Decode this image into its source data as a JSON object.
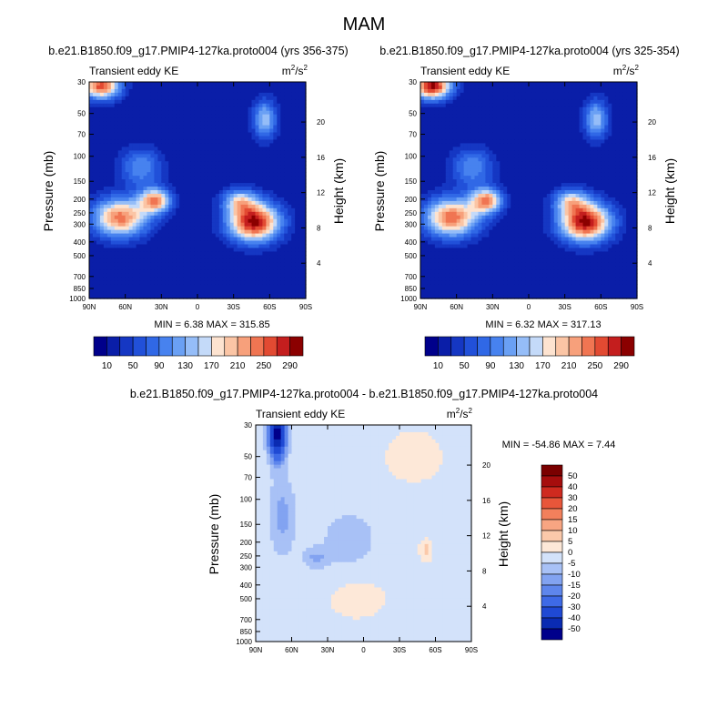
{
  "figure_title": "MAM",
  "chart_data": [
    {
      "type": "heatmap",
      "title": "b.e21.B1850.f09_g17.PMIP4-127ka.proto004 (yrs 356-375)",
      "subtitle_left": "Transient eddy KE",
      "units": "m2/s2",
      "units_base": "m",
      "units_num_sup": "2",
      "units_mid": "/s",
      "units_den_sup": "2",
      "xlabel": "",
      "ylabel": "Pressure (mb)",
      "right_label": "Height (km)",
      "x_ticks": [
        "90N",
        "60N",
        "30N",
        "0",
        "30S",
        "60S",
        "90S"
      ],
      "x_values": [
        90,
        60,
        30,
        0,
        -30,
        -60,
        -90
      ],
      "p_ticks": [
        30,
        50,
        70,
        100,
        150,
        200,
        250,
        300,
        400,
        500,
        700,
        850,
        1000
      ],
      "height_ticks": [
        4,
        8,
        12,
        16,
        20
      ],
      "min_text": "MIN =   6.38  MAX = 315.85",
      "min": 6.38,
      "max": 315.85,
      "colorbar_labels": [
        "10",
        "50",
        "90",
        "130",
        "170",
        "210",
        "250",
        "290"
      ],
      "levels": [
        10,
        30,
        50,
        70,
        90,
        110,
        130,
        150,
        170,
        190,
        210,
        230,
        250,
        270,
        290
      ],
      "features": [
        {
          "lat": 64,
          "p": 270,
          "peak": 240,
          "wlat": 16,
          "wlog": 0.22
        },
        {
          "lat": 35,
          "p": 205,
          "peak": 225,
          "wlat": 9,
          "wlog": 0.14
        },
        {
          "lat": 47,
          "p": 120,
          "peak": 110,
          "wlat": 12,
          "wlog": 0.22
        },
        {
          "lat": 80,
          "p": 32,
          "peak": 260,
          "wlat": 11,
          "wlog": 0.15
        },
        {
          "lat": -47,
          "p": 290,
          "peak": 300,
          "wlat": 15,
          "wlog": 0.22
        },
        {
          "lat": -35,
          "p": 205,
          "peak": 140,
          "wlat": 10,
          "wlog": 0.14
        },
        {
          "lat": -56,
          "p": 55,
          "peak": 145,
          "wlat": 7,
          "wlog": 0.22
        }
      ],
      "background": 12
    },
    {
      "type": "heatmap",
      "title": "b.e21.B1850.f09_g17.PMIP4-127ka.proto004 (yrs 325-354)",
      "subtitle_left": "Transient eddy KE",
      "units": "m2/s2",
      "units_base": "m",
      "units_num_sup": "2",
      "units_mid": "/s",
      "units_den_sup": "2",
      "xlabel": "",
      "ylabel": "Pressure (mb)",
      "right_label": "Height (km)",
      "x_ticks": [
        "90N",
        "60N",
        "30N",
        "0",
        "30S",
        "60S",
        "90S"
      ],
      "x_values": [
        90,
        60,
        30,
        0,
        -30,
        -60,
        -90
      ],
      "p_ticks": [
        30,
        50,
        70,
        100,
        150,
        200,
        250,
        300,
        400,
        500,
        700,
        850,
        1000
      ],
      "height_ticks": [
        4,
        8,
        12,
        16,
        20
      ],
      "min_text": "MIN =   6.32  MAX = 317.13",
      "min": 6.32,
      "max": 317.13,
      "colorbar_labels": [
        "10",
        "50",
        "90",
        "130",
        "170",
        "210",
        "250",
        "290"
      ],
      "levels": [
        10,
        30,
        50,
        70,
        90,
        110,
        130,
        150,
        170,
        190,
        210,
        230,
        250,
        270,
        290
      ],
      "features": [
        {
          "lat": 64,
          "p": 270,
          "peak": 245,
          "wlat": 16,
          "wlog": 0.22
        },
        {
          "lat": 35,
          "p": 205,
          "peak": 225,
          "wlat": 9,
          "wlog": 0.14
        },
        {
          "lat": 47,
          "p": 120,
          "peak": 110,
          "wlat": 12,
          "wlog": 0.22
        },
        {
          "lat": 80,
          "p": 32,
          "peak": 300,
          "wlat": 11,
          "wlog": 0.15
        },
        {
          "lat": -47,
          "p": 290,
          "peak": 300,
          "wlat": 15,
          "wlog": 0.22
        },
        {
          "lat": -35,
          "p": 205,
          "peak": 140,
          "wlat": 10,
          "wlog": 0.14
        },
        {
          "lat": -56,
          "p": 55,
          "peak": 145,
          "wlat": 7,
          "wlog": 0.22
        }
      ],
      "background": 12
    },
    {
      "type": "heatmap",
      "title": "b.e21.B1850.f09_g17.PMIP4-127ka.proto004 - b.e21.B1850.f09_g17.PMIP4-127ka.proto004",
      "subtitle_left": "Transient eddy KE",
      "units": "m2/s2",
      "units_base": "m",
      "units_num_sup": "2",
      "units_mid": "/s",
      "units_den_sup": "2",
      "xlabel": "",
      "ylabel": "Pressure (mb)",
      "right_label": "Height (km)",
      "x_ticks": [
        "90N",
        "60N",
        "30N",
        "0",
        "30S",
        "60S",
        "90S"
      ],
      "x_values": [
        90,
        60,
        30,
        0,
        -30,
        -60,
        -90
      ],
      "p_ticks": [
        30,
        50,
        70,
        100,
        150,
        200,
        250,
        300,
        400,
        500,
        700,
        850,
        1000
      ],
      "height_ticks": [
        4,
        8,
        12,
        16,
        20
      ],
      "min_text": "MIN = -54.86  MAX =   7.44",
      "min": -54.86,
      "max": 7.44,
      "colorbar_labels": [
        "50",
        "40",
        "30",
        "20",
        "15",
        "10",
        "5",
        "0",
        "-5",
        "-10",
        "-15",
        "-20",
        "-30",
        "-40",
        "-50"
      ],
      "levels": [
        -50,
        -40,
        -30,
        -20,
        -15,
        -10,
        -5,
        0,
        5,
        10,
        15,
        20,
        30,
        40,
        50
      ],
      "features": [
        {
          "lat": 72,
          "p": 35,
          "peak": -55,
          "wlat": 5,
          "wlog": 0.28
        },
        {
          "lat": 68,
          "p": 130,
          "peak": -12,
          "wlat": 8,
          "wlog": 0.45
        },
        {
          "lat": 12,
          "p": 190,
          "peak": -8,
          "wlat": 18,
          "wlog": 0.35
        },
        {
          "lat": 40,
          "p": 260,
          "peak": -10,
          "wlat": 8,
          "wlog": 0.12
        },
        {
          "lat": -52,
          "p": 230,
          "peak": 7.4,
          "wlat": 3,
          "wlog": 0.1
        },
        {
          "lat": -42,
          "p": 50,
          "peak": 3,
          "wlat": 14,
          "wlog": 0.25
        },
        {
          "lat": 5,
          "p": 500,
          "peak": 2.5,
          "wlat": 15,
          "wlog": 0.2
        }
      ],
      "background": -1
    }
  ]
}
